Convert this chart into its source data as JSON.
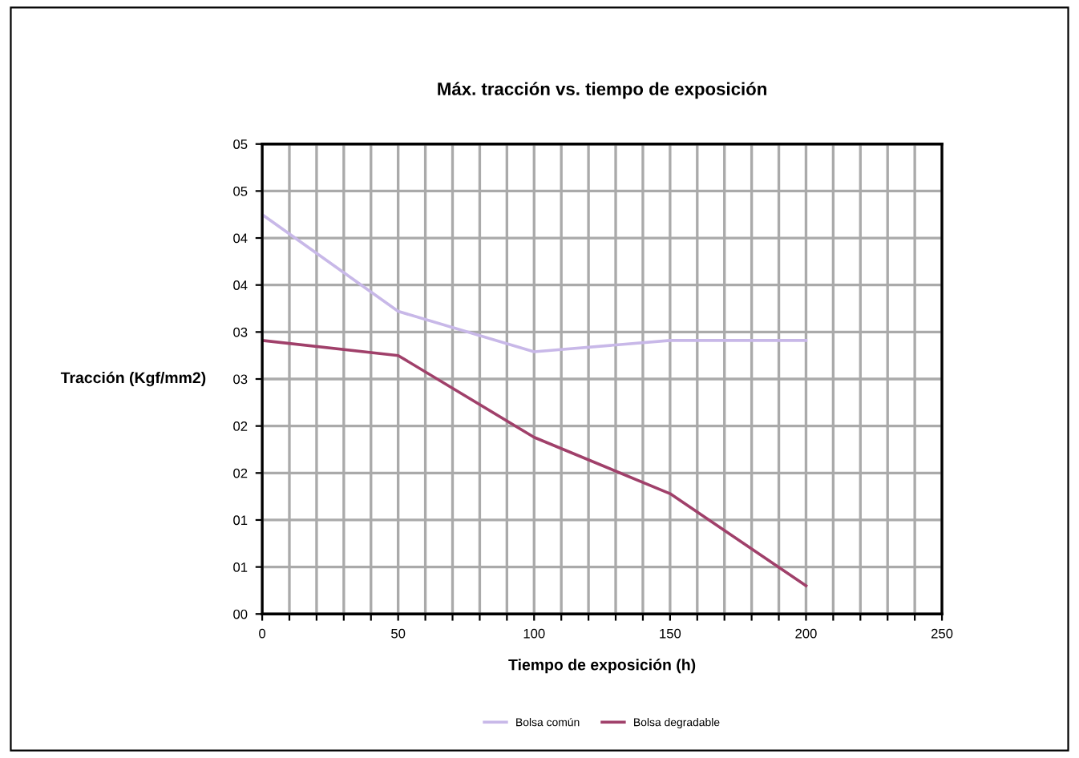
{
  "chart_data": {
    "type": "line",
    "title": "Máx. tracción vs. tiempo de exposición",
    "xlabel": "Tiempo de exposición (h)",
    "ylabel": "Tracción (Kgf/mm2)",
    "x": [
      0,
      50,
      100,
      150,
      200
    ],
    "series": [
      {
        "name": "Bolsa común",
        "color": "#c8b8e8",
        "values": [
          4.25,
          3.22,
          2.79,
          2.91,
          2.91
        ]
      },
      {
        "name": "Bolsa degradable",
        "color": "#a0406a",
        "values": [
          2.91,
          2.75,
          1.88,
          1.28,
          0.3
        ]
      }
    ],
    "xlim": [
      0,
      250
    ],
    "xticks": [
      0,
      {
        "value": 10,
        "label": null
      },
      {
        "value": 20,
        "label": null
      },
      {
        "value": 30,
        "label": null
      },
      {
        "value": 40,
        "label": null
      },
      50,
      {
        "value": 60,
        "label": null
      },
      {
        "value": 70,
        "label": null
      },
      {
        "value": 80,
        "label": null
      },
      {
        "value": 90,
        "label": null
      },
      100,
      {
        "value": 110,
        "label": null
      },
      {
        "value": 120,
        "label": null
      },
      {
        "value": 130,
        "label": null
      },
      {
        "value": 140,
        "label": null
      },
      150,
      {
        "value": 160,
        "label": null
      },
      {
        "value": 170,
        "label": null
      },
      {
        "value": 180,
        "label": null
      },
      {
        "value": 190,
        "label": null
      },
      200,
      {
        "value": 210,
        "label": null
      },
      {
        "value": 220,
        "label": null
      },
      {
        "value": 230,
        "label": null
      },
      {
        "value": 240,
        "label": null
      },
      250
    ],
    "ylim": [
      0,
      5
    ],
    "yticks": [
      {
        "value": 0,
        "label": "00"
      },
      {
        "value": 0.5,
        "label": "01"
      },
      {
        "value": 1,
        "label": "01"
      },
      {
        "value": 1.5,
        "label": "02"
      },
      {
        "value": 2,
        "label": "02"
      },
      {
        "value": 2.5,
        "label": "03"
      },
      {
        "value": 3,
        "label": "03"
      },
      {
        "value": 3.5,
        "label": "04"
      },
      {
        "value": 4,
        "label": "04"
      },
      {
        "value": 4.5,
        "label": "05"
      },
      {
        "value": 5,
        "label": "05"
      }
    ],
    "grid": true,
    "legend": "bottom",
    "marker": "none",
    "line_style": "solid"
  }
}
